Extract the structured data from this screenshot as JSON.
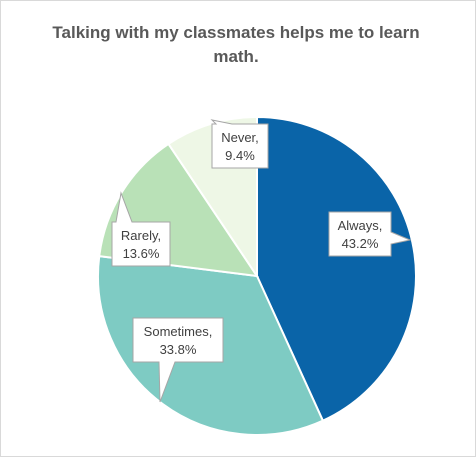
{
  "chart_data": {
    "type": "pie",
    "title": "Talking with my classmates helps me to learn math.",
    "categories": [
      "Always",
      "Sometimes",
      "Rarely",
      "Never"
    ],
    "values": [
      43.2,
      33.8,
      13.6,
      9.4
    ],
    "value_labels": [
      "43.2%",
      "33.8%",
      "13.6%",
      "9.4%"
    ],
    "colors": [
      "#0a64a8",
      "#7ecbc3",
      "#b9e1b7",
      "#eef7e6"
    ],
    "legend": "none",
    "start_angle": "12 o'clock",
    "direction": "clockwise"
  }
}
